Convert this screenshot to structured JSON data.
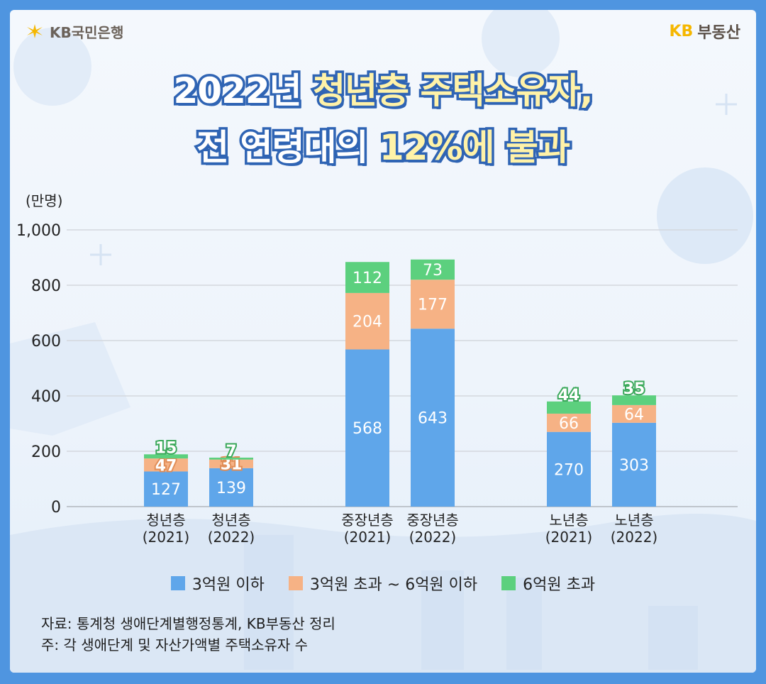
{
  "header": {
    "bank_logo_text": "KB국민은행",
    "brand_kb": "KB",
    "brand_name": "부동산"
  },
  "title": {
    "line1_part1": "2022년 ",
    "line1_highlight": "청년층 주택소유자,",
    "line2_part1": "전 연령대의 ",
    "line2_highlight": "12%에 불과"
  },
  "chart_data": {
    "type": "bar",
    "stacked": true,
    "unit_label": "(만명)",
    "ylim": [
      0,
      1000
    ],
    "yticks": [
      "0",
      "200",
      "400",
      "600",
      "800",
      "1,000"
    ],
    "ytick_values": [
      0,
      200,
      400,
      600,
      800,
      1000
    ],
    "grid": true,
    "groups": [
      {
        "bars": [
          {
            "label1": "청년층",
            "label2": "(2021)",
            "values": [
              127,
              47,
              15
            ]
          },
          {
            "label1": "청년층",
            "label2": "(2022)",
            "values": [
              139,
              31,
              7
            ]
          }
        ]
      },
      {
        "bars": [
          {
            "label1": "중장년층",
            "label2": "(2021)",
            "values": [
              568,
              204,
              112
            ]
          },
          {
            "label1": "중장년층",
            "label2": "(2022)",
            "values": [
              643,
              177,
              73
            ]
          }
        ]
      },
      {
        "bars": [
          {
            "label1": "노년층",
            "label2": "(2021)",
            "values": [
              270,
              66,
              44
            ]
          },
          {
            "label1": "노년층",
            "label2": "(2022)",
            "values": [
              303,
              64,
              35
            ]
          }
        ]
      }
    ],
    "series": [
      {
        "name": "3억원 이하",
        "color": "#5fa6ea"
      },
      {
        "name": "3억원 초과 ~ 6억원 이하",
        "color": "#f6b285"
      },
      {
        "name": "6억원 초과",
        "color": "#5cd07e"
      }
    ],
    "legend_position": "bottom"
  },
  "notes": {
    "source": "자료: 통계청 생애단계별행정통계, KB부동산 정리",
    "note": "주: 각 생애단계 및 자산가액별 주택소유자 수"
  }
}
